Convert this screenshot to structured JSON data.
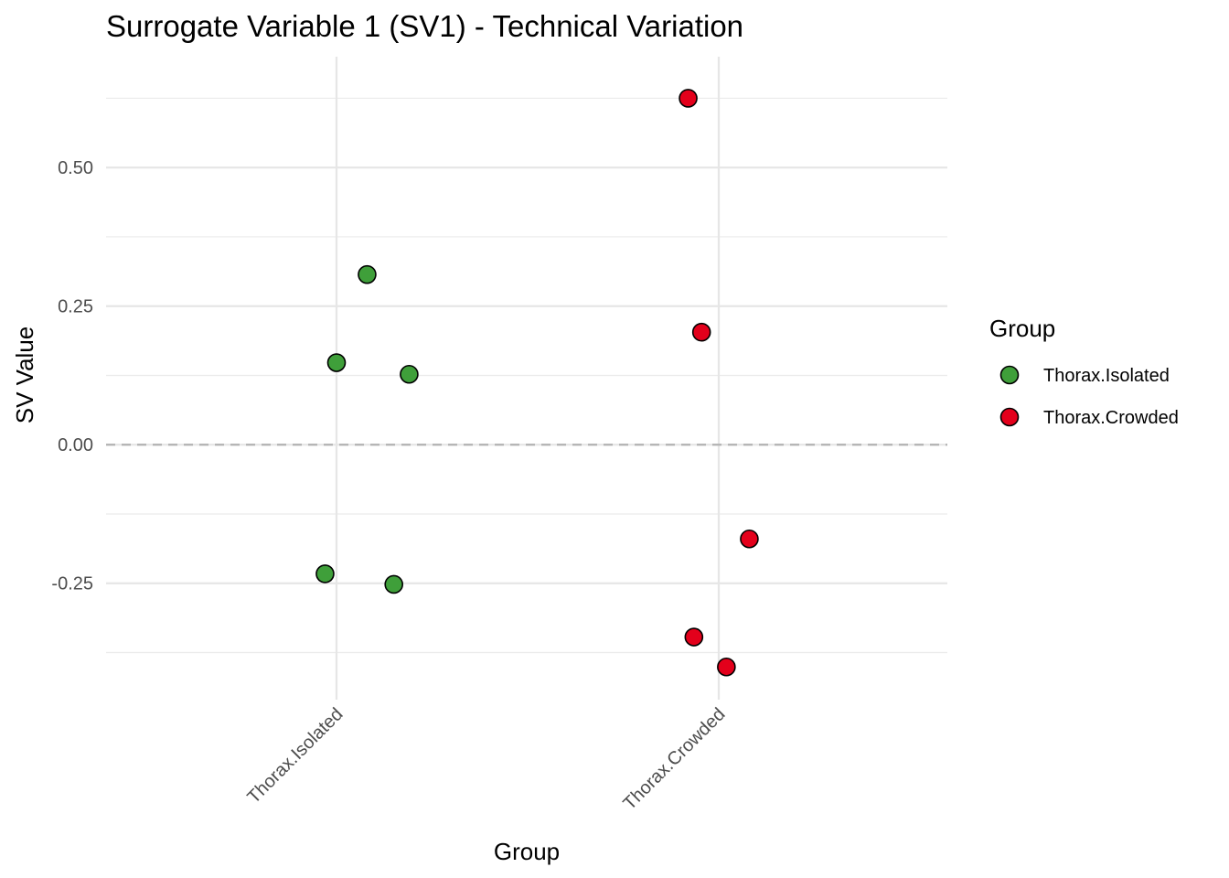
{
  "chart_data": {
    "type": "scatter",
    "title": "Surrogate Variable 1 (SV1) - Technical Variation",
    "xlabel": "Group",
    "ylabel": "SV Value",
    "categories": [
      "Thorax.Isolated",
      "Thorax.Crowded"
    ],
    "y_ticks": [
      -0.25,
      0.0,
      0.25,
      0.5
    ],
    "y_tick_labels": [
      "-0.25",
      "0.00",
      "0.25",
      "0.50"
    ],
    "ylim": [
      -0.46,
      0.7
    ],
    "reference_line": {
      "y": 0.0,
      "style": "dashed"
    },
    "grid": true,
    "legend": {
      "title": "Group",
      "placement": "right",
      "entries": [
        {
          "label": "Thorax.Isolated",
          "color": "#3f9f3a"
        },
        {
          "label": "Thorax.Crowded",
          "color": "#e3001b"
        }
      ]
    },
    "series": [
      {
        "name": "Thorax.Isolated",
        "color": "#3f9f3a",
        "points": [
          {
            "x": 0.08,
            "y": 0.307
          },
          {
            "x": 0.0,
            "y": 0.148
          },
          {
            "x": 0.19,
            "y": 0.127
          },
          {
            "x": -0.03,
            "y": -0.233
          },
          {
            "x": 0.15,
            "y": -0.252
          }
        ]
      },
      {
        "name": "Thorax.Crowded",
        "color": "#e3001b",
        "points": [
          {
            "x": 0.92,
            "y": 0.625
          },
          {
            "x": 0.955,
            "y": 0.203
          },
          {
            "x": 1.08,
            "y": -0.17
          },
          {
            "x": 0.935,
            "y": -0.347
          },
          {
            "x": 1.02,
            "y": -0.401
          }
        ]
      }
    ]
  }
}
